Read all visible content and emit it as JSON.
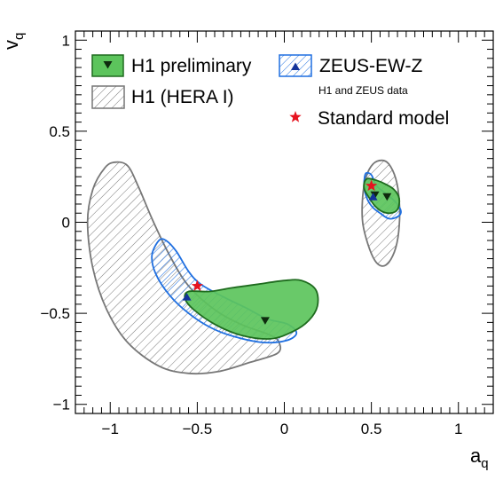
{
  "chart_data": {
    "type": "scatter",
    "title": "",
    "xlabel": "a",
    "xlabel_sub": "q",
    "ylabel": "v",
    "ylabel_sub": "q",
    "xlim": [
      -1.2,
      1.2
    ],
    "ylim": [
      -1.05,
      1.05
    ],
    "xticks": [
      -1,
      -0.5,
      0,
      0.5,
      1
    ],
    "xtick_labels": [
      "−1",
      "−0.5",
      "0",
      "0.5",
      "1"
    ],
    "yticks": [
      -1,
      -0.5,
      0,
      0.5,
      1
    ],
    "ytick_labels": [
      "−1",
      "−0.5",
      "0",
      "0.5",
      "1"
    ],
    "grid": false,
    "legend": {
      "placement": "top",
      "entries": [
        {
          "key": "h1_prelim",
          "label": "H1 preliminary"
        },
        {
          "key": "zeus",
          "label": "ZEUS-EW-Z",
          "note": "H1 and ZEUS data"
        },
        {
          "key": "h1_hera1",
          "label": "H1 (HERA I)"
        },
        {
          "key": "sm",
          "label": "Standard model"
        }
      ]
    },
    "colors": {
      "h1_prelim_fill": "#5cc45c",
      "h1_prelim_edge": "#1e6b1e",
      "zeus_edge": "#1f6fe0",
      "zeus_marker": "#13339a",
      "h1_hera1_edge": "#777777",
      "sm_marker": "#e6131f",
      "h1_marker": "#0e2a0e"
    },
    "contours": [
      {
        "key": "h1_hera1",
        "regions": [
          [
            [
              -0.97,
              0.33
            ],
            [
              -0.9,
              0.31
            ],
            [
              -0.84,
              0.2
            ],
            [
              -0.76,
              0.02
            ],
            [
              -0.66,
              -0.18
            ],
            [
              -0.55,
              -0.35
            ],
            [
              -0.4,
              -0.48
            ],
            [
              -0.25,
              -0.56
            ],
            [
              -0.08,
              -0.62
            ],
            [
              -0.03,
              -0.66
            ],
            [
              -0.04,
              -0.72
            ],
            [
              -0.2,
              -0.77
            ],
            [
              -0.38,
              -0.82
            ],
            [
              -0.55,
              -0.83
            ],
            [
              -0.72,
              -0.79
            ],
            [
              -0.9,
              -0.66
            ],
            [
              -1.02,
              -0.48
            ],
            [
              -1.1,
              -0.25
            ],
            [
              -1.13,
              0.0
            ],
            [
              -1.1,
              0.18
            ],
            [
              -1.03,
              0.3
            ]
          ],
          [
            [
              0.56,
              0.34
            ],
            [
              0.6,
              0.32
            ],
            [
              0.64,
              0.24
            ],
            [
              0.66,
              0.12
            ],
            [
              0.66,
              -0.02
            ],
            [
              0.64,
              -0.14
            ],
            [
              0.6,
              -0.22
            ],
            [
              0.56,
              -0.24
            ],
            [
              0.52,
              -0.21
            ],
            [
              0.48,
              -0.12
            ],
            [
              0.45,
              0.0
            ],
            [
              0.45,
              0.14
            ],
            [
              0.47,
              0.25
            ],
            [
              0.51,
              0.32
            ]
          ]
        ]
      },
      {
        "key": "zeus",
        "regions": [
          [
            [
              -0.72,
              -0.1
            ],
            [
              -0.68,
              -0.1
            ],
            [
              -0.62,
              -0.16
            ],
            [
              -0.55,
              -0.27
            ],
            [
              -0.48,
              -0.34
            ],
            [
              -0.35,
              -0.41
            ],
            [
              -0.22,
              -0.47
            ],
            [
              -0.1,
              -0.53
            ],
            [
              0.02,
              -0.56
            ],
            [
              0.07,
              -0.61
            ],
            [
              0.01,
              -0.65
            ],
            [
              -0.12,
              -0.66
            ],
            [
              -0.28,
              -0.63
            ],
            [
              -0.42,
              -0.58
            ],
            [
              -0.55,
              -0.5
            ],
            [
              -0.66,
              -0.4
            ],
            [
              -0.74,
              -0.28
            ],
            [
              -0.76,
              -0.18
            ]
          ],
          [
            [
              0.47,
              0.27
            ],
            [
              0.5,
              0.26
            ],
            [
              0.53,
              0.2
            ],
            [
              0.58,
              0.16
            ],
            [
              0.64,
              0.11
            ],
            [
              0.67,
              0.06
            ],
            [
              0.65,
              0.03
            ],
            [
              0.6,
              0.02
            ],
            [
              0.55,
              0.05
            ],
            [
              0.51,
              0.08
            ],
            [
              0.48,
              0.12
            ],
            [
              0.46,
              0.18
            ],
            [
              0.46,
              0.24
            ]
          ]
        ]
      },
      {
        "key": "h1_prelim",
        "regions": [
          [
            [
              -0.55,
              -0.38
            ],
            [
              -0.43,
              -0.38
            ],
            [
              -0.3,
              -0.36
            ],
            [
              -0.15,
              -0.34
            ],
            [
              0.0,
              -0.32
            ],
            [
              0.1,
              -0.32
            ],
            [
              0.18,
              -0.37
            ],
            [
              0.19,
              -0.46
            ],
            [
              0.14,
              -0.54
            ],
            [
              0.05,
              -0.6
            ],
            [
              -0.08,
              -0.64
            ],
            [
              -0.25,
              -0.62
            ],
            [
              -0.4,
              -0.56
            ],
            [
              -0.52,
              -0.48
            ],
            [
              -0.57,
              -0.42
            ]
          ],
          [
            [
              0.48,
              0.24
            ],
            [
              0.53,
              0.23
            ],
            [
              0.58,
              0.21
            ],
            [
              0.63,
              0.18
            ],
            [
              0.66,
              0.13
            ],
            [
              0.65,
              0.07
            ],
            [
              0.61,
              0.05
            ],
            [
              0.56,
              0.06
            ],
            [
              0.52,
              0.09
            ],
            [
              0.49,
              0.13
            ],
            [
              0.46,
              0.18
            ],
            [
              0.46,
              0.22
            ]
          ]
        ]
      }
    ],
    "points": [
      {
        "key": "h1_prelim",
        "marker": "triangle-down",
        "x": [
          -0.11,
          0.52,
          0.59
        ],
        "y": [
          -0.54,
          0.15,
          0.14
        ]
      },
      {
        "key": "zeus",
        "marker": "triangle-up",
        "x": [
          -0.56,
          0.51
        ],
        "y": [
          -0.41,
          0.14
        ]
      },
      {
        "key": "sm",
        "marker": "star",
        "x": [
          -0.5,
          0.5
        ],
        "y": [
          -0.35,
          0.2
        ]
      }
    ]
  }
}
